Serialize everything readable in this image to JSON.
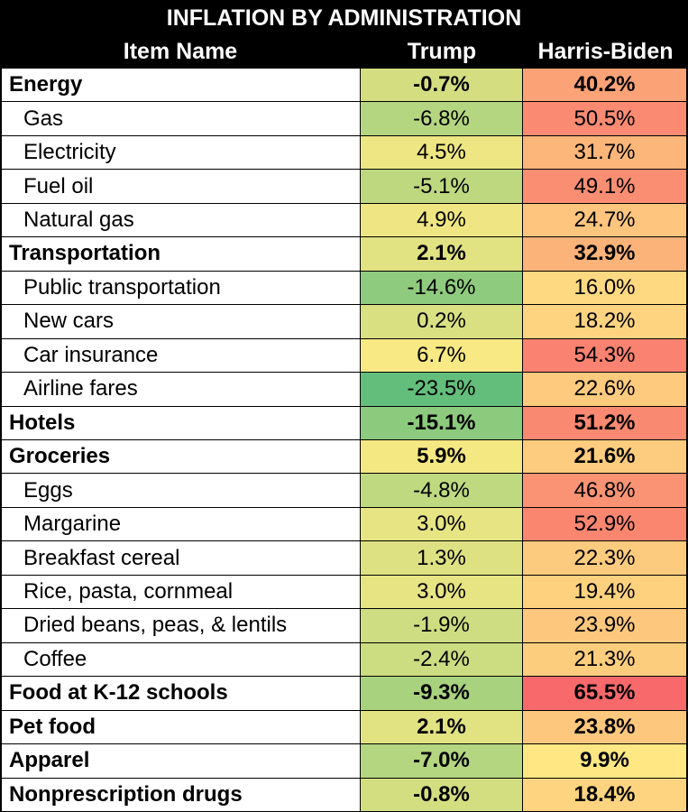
{
  "table": {
    "title": "INFLATION BY ADMINISTRATION",
    "columns": [
      "Item Name",
      "Trump",
      "Harris-Biden"
    ],
    "groups": [
      {
        "name": "Energy",
        "trump": "-0.7%",
        "harris": "40.2%",
        "items": [
          {
            "name": "Gas",
            "trump": "-6.8%",
            "harris": "50.5%"
          },
          {
            "name": "Electricity",
            "trump": "4.5%",
            "harris": "31.7%"
          },
          {
            "name": "Fuel oil",
            "trump": "-5.1%",
            "harris": "49.1%"
          },
          {
            "name": "Natural gas",
            "trump": "4.9%",
            "harris": "24.7%"
          }
        ]
      },
      {
        "name": "Transportation",
        "trump": "2.1%",
        "harris": "32.9%",
        "items": [
          {
            "name": "Public transportation",
            "trump": "-14.6%",
            "harris": "16.0%"
          },
          {
            "name": "New cars",
            "trump": "0.2%",
            "harris": "18.2%"
          },
          {
            "name": "Car insurance",
            "trump": "6.7%",
            "harris": "54.3%"
          },
          {
            "name": "Airline fares",
            "trump": "-23.5%",
            "harris": "22.6%"
          }
        ]
      },
      {
        "name": "Hotels",
        "trump": "-15.1%",
        "harris": "51.2%",
        "items": []
      },
      {
        "name": "Groceries",
        "trump": "5.9%",
        "harris": "21.6%",
        "items": [
          {
            "name": "Eggs",
            "trump": "-4.8%",
            "harris": "46.8%"
          },
          {
            "name": "Margarine",
            "trump": "3.0%",
            "harris": "52.9%"
          },
          {
            "name": "Breakfast cereal",
            "trump": "1.3%",
            "harris": "22.3%"
          },
          {
            "name": "Rice, pasta, cornmeal",
            "trump": "3.0%",
            "harris": "19.4%"
          },
          {
            "name": "Dried beans, peas, & lentils",
            "trump": "-1.9%",
            "harris": "23.9%"
          },
          {
            "name": "Coffee",
            "trump": "-2.4%",
            "harris": "21.3%"
          }
        ]
      },
      {
        "name": "Food at K-12 schools",
        "trump": "-9.3%",
        "harris": "65.5%",
        "items": []
      },
      {
        "name": "Pet food",
        "trump": "2.1%",
        "harris": "23.8%",
        "items": []
      },
      {
        "name": "Apparel",
        "trump": "-7.0%",
        "harris": "9.9%",
        "items": []
      },
      {
        "name": "Nonprescription drugs",
        "trump": "-0.8%",
        "harris": "18.4%",
        "items": []
      }
    ]
  }
}
